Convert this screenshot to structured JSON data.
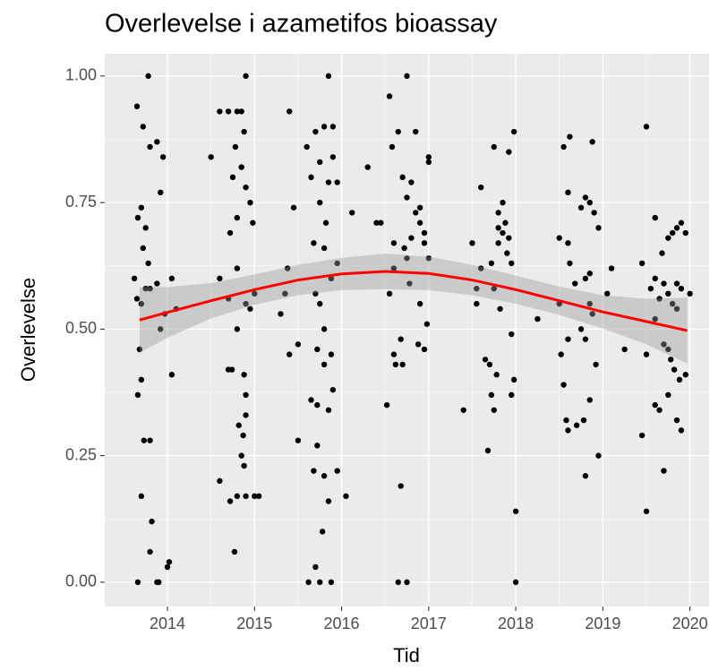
{
  "chart_data": {
    "type": "scatter",
    "title": "Overlevelse i azametifos bioassay",
    "x_label": "Tid",
    "y_label": "Overlevelse",
    "xlim": [
      2013.28,
      2020.22
    ],
    "ylim": [
      -0.048,
      1.044
    ],
    "xticks": [
      2014,
      2015,
      2016,
      2017,
      2018,
      2019,
      2020
    ],
    "yticks": [
      {
        "value": 0,
        "label": "0.00"
      },
      {
        "value": 0.25,
        "label": "0.25"
      },
      {
        "value": 0.5,
        "label": "0.50"
      },
      {
        "value": 0.75,
        "label": "0.75"
      },
      {
        "value": 1,
        "label": "1.00"
      }
    ],
    "grid": true,
    "minor_grid": true,
    "color": "#000000",
    "x": [
      2013.65,
      2013.72,
      2013.78,
      2013.66,
      2013.7,
      2013.75,
      2013.8,
      2013.88,
      2013.92,
      2013.95,
      2013.62,
      2013.65,
      2013.7,
      2013.75,
      2013.8,
      2013.88,
      2013.92,
      2013.97,
      2014.05,
      2014.1,
      2013.68,
      2013.66,
      2013.7,
      2013.73,
      2013.8,
      2013.7,
      2013.82,
      2013.8,
      2013.88,
      2013.66,
      2013.9,
      2014.0,
      2014.02,
      2014.05,
      2013.72,
      2013.78,
      2014.5,
      2014.6,
      2014.7,
      2014.8,
      2014.85,
      2014.9,
      2014.75,
      2014.78,
      2014.88,
      2014.9,
      2014.95,
      2014.72,
      2014.8,
      2014.98,
      2014.85,
      2014.6,
      2014.7,
      2014.8,
      2014.9,
      2014.95,
      2015.0,
      2014.8,
      2014.7,
      2014.74,
      2014.88,
      2014.9,
      2014.82,
      2014.87,
      2014.9,
      2014.85,
      2014.88,
      2014.6,
      2014.72,
      2014.8,
      2014.9,
      2015.0,
      2015.05,
      2014.77,
      2015.4,
      2015.45,
      2015.3,
      2015.35,
      2015.38,
      2015.4,
      2015.5,
      2015.5,
      2015.6,
      2015.65,
      2015.7,
      2015.75,
      2015.8,
      2015.85,
      2015.9,
      2015.75,
      2015.82,
      2015.85,
      2015.9,
      2015.95,
      2015.68,
      2015.8,
      2015.88,
      2015.7,
      2015.75,
      2015.8,
      2015.72,
      2015.8,
      2015.88,
      2015.65,
      2015.72,
      2015.85,
      2015.9,
      2015.72,
      2015.68,
      2015.8,
      2015.95,
      2015.85,
      2015.78,
      2015.7,
      2015.75,
      2015.62,
      2015.88,
      2016.05,
      2015.95,
      2016.12,
      2016.3,
      2016.4,
      2016.45,
      2016.55,
      2016.58,
      2016.65,
      2016.75,
      2016.85,
      2016.7,
      2016.75,
      2016.8,
      2016.9,
      2016.95,
      2017.0,
      2017.0,
      2016.6,
      2016.72,
      2016.8,
      2016.85,
      2016.9,
      2016.95,
      2016.55,
      2016.6,
      2016.75,
      2016.78,
      2017.0,
      2016.9,
      2016.68,
      2016.88,
      2016.95,
      2016.98,
      2016.6,
      2016.62,
      2016.7,
      2016.52,
      2016.68,
      2016.65,
      2016.75,
      2017.5,
      2017.55,
      2017.6,
      2017.65,
      2017.7,
      2017.4,
      2017.6,
      2017.75,
      2017.8,
      2017.85,
      2017.8,
      2017.85,
      2017.88,
      2017.92,
      2017.8,
      2017.9,
      2017.95,
      2017.98,
      2017.92,
      2017.75,
      2017.82,
      2017.72,
      2017.68,
      2017.72,
      2017.78,
      2017.75,
      2017.95,
      2017.98,
      2017.95,
      2018.0,
      2018.0,
      2017.55,
      2018.25,
      2018.5,
      2018.55,
      2018.6,
      2018.62,
      2018.75,
      2018.8,
      2018.85,
      2018.88,
      2018.9,
      2018.95,
      2018.6,
      2018.62,
      2018.68,
      2018.8,
      2018.85,
      2018.5,
      2018.6,
      2018.75,
      2018.8,
      2018.85,
      2018.88,
      2018.92,
      2018.52,
      2018.55,
      2018.58,
      2018.6,
      2018.7,
      2018.78,
      2018.85,
      2018.8,
      2018.95,
      2019.1,
      2019.05,
      2019.25,
      2019.5,
      2019.45,
      2019.55,
      2019.5,
      2019.45,
      2019.5,
      2019.6,
      2019.68,
      2019.75,
      2019.8,
      2019.85,
      2019.9,
      2019.95,
      2019.6,
      2019.65,
      2019.7,
      2019.75,
      2019.85,
      2019.9,
      2020.0,
      2019.6,
      2019.7,
      2019.75,
      2019.8,
      2019.85,
      2019.78,
      2019.82,
      2019.88,
      2019.95,
      2019.6,
      2019.65,
      2019.75,
      2019.85,
      2019.9,
      2019.7
    ],
    "values": [
      0.94,
      0.9,
      1.0,
      0.72,
      0.74,
      0.7,
      0.86,
      0.87,
      0.77,
      0.84,
      0.6,
      0.56,
      0.55,
      0.58,
      0.58,
      0.59,
      0.5,
      0.53,
      0.6,
      0.54,
      0.46,
      0.37,
      0.4,
      0.28,
      0.28,
      0.17,
      0.12,
      0.06,
      0.0,
      0.0,
      0.0,
      0.03,
      0.04,
      0.41,
      0.66,
      0.63,
      0.84,
      0.93,
      0.93,
      0.93,
      0.93,
      1.0,
      0.8,
      0.86,
      0.89,
      0.78,
      0.75,
      0.69,
      0.72,
      0.71,
      0.82,
      0.6,
      0.56,
      0.62,
      0.55,
      0.54,
      0.57,
      0.5,
      0.42,
      0.42,
      0.41,
      0.37,
      0.31,
      0.29,
      0.33,
      0.25,
      0.23,
      0.2,
      0.16,
      0.17,
      0.17,
      0.17,
      0.17,
      0.06,
      0.93,
      0.74,
      0.53,
      0.57,
      0.62,
      0.45,
      0.47,
      0.28,
      0.86,
      0.8,
      0.89,
      0.83,
      0.9,
      1.0,
      0.9,
      0.75,
      0.71,
      0.79,
      0.84,
      0.79,
      0.67,
      0.66,
      0.6,
      0.57,
      0.55,
      0.5,
      0.46,
      0.43,
      0.45,
      0.36,
      0.35,
      0.34,
      0.38,
      0.27,
      0.22,
      0.21,
      0.22,
      0.16,
      0.1,
      0.03,
      0.0,
      0.0,
      0.0,
      0.17,
      0.63,
      0.73,
      0.82,
      0.71,
      0.71,
      0.96,
      0.86,
      0.89,
      1.0,
      0.89,
      0.8,
      0.76,
      0.79,
      0.74,
      0.69,
      0.84,
      0.83,
      0.67,
      0.66,
      0.68,
      0.73,
      0.71,
      0.67,
      0.57,
      0.62,
      0.64,
      0.59,
      0.64,
      0.55,
      0.48,
      0.47,
      0.46,
      0.51,
      0.45,
      0.43,
      0.43,
      0.35,
      0.19,
      0.0,
      0.0,
      0.67,
      0.55,
      0.62,
      0.44,
      0.43,
      0.34,
      0.78,
      0.86,
      0.73,
      0.75,
      0.7,
      0.69,
      0.71,
      0.68,
      0.67,
      0.65,
      0.63,
      0.89,
      0.85,
      0.58,
      0.54,
      0.63,
      0.26,
      0.37,
      0.41,
      0.34,
      0.49,
      0.4,
      0.37,
      0.14,
      0.0,
      0.58,
      0.52,
      0.68,
      0.86,
      0.77,
      0.88,
      0.74,
      0.76,
      0.75,
      0.87,
      0.73,
      0.7,
      0.67,
      0.63,
      0.59,
      0.6,
      0.61,
      0.55,
      0.48,
      0.5,
      0.48,
      0.55,
      0.53,
      0.43,
      0.45,
      0.39,
      0.32,
      0.3,
      0.31,
      0.32,
      0.36,
      0.21,
      0.25,
      0.62,
      0.57,
      0.46,
      0.9,
      0.63,
      0.58,
      0.45,
      0.29,
      0.14,
      0.72,
      0.65,
      0.68,
      0.69,
      0.7,
      0.71,
      0.69,
      0.6,
      0.56,
      0.59,
      0.57,
      0.59,
      0.58,
      0.57,
      0.52,
      0.47,
      0.46,
      0.55,
      0.54,
      0.44,
      0.42,
      0.4,
      0.41,
      0.35,
      0.34,
      0.37,
      0.32,
      0.3,
      0.22
    ],
    "smooth": {
      "color": "#ff0000",
      "band_color": "#999999",
      "x": [
        2013.68,
        2014,
        2014.5,
        2015,
        2015.5,
        2016,
        2016.5,
        2017,
        2017.5,
        2018,
        2018.5,
        2019,
        2019.5,
        2019.97
      ],
      "values": [
        0.518,
        0.533,
        0.556,
        0.578,
        0.597,
        0.609,
        0.614,
        0.61,
        0.597,
        0.578,
        0.556,
        0.534,
        0.515,
        0.497
      ],
      "lower": [
        0.453,
        0.483,
        0.521,
        0.548,
        0.567,
        0.577,
        0.579,
        0.577,
        0.567,
        0.55,
        0.528,
        0.501,
        0.47,
        0.432
      ],
      "upper": [
        0.583,
        0.583,
        0.591,
        0.608,
        0.627,
        0.641,
        0.649,
        0.643,
        0.627,
        0.606,
        0.584,
        0.567,
        0.56,
        0.562
      ]
    }
  }
}
